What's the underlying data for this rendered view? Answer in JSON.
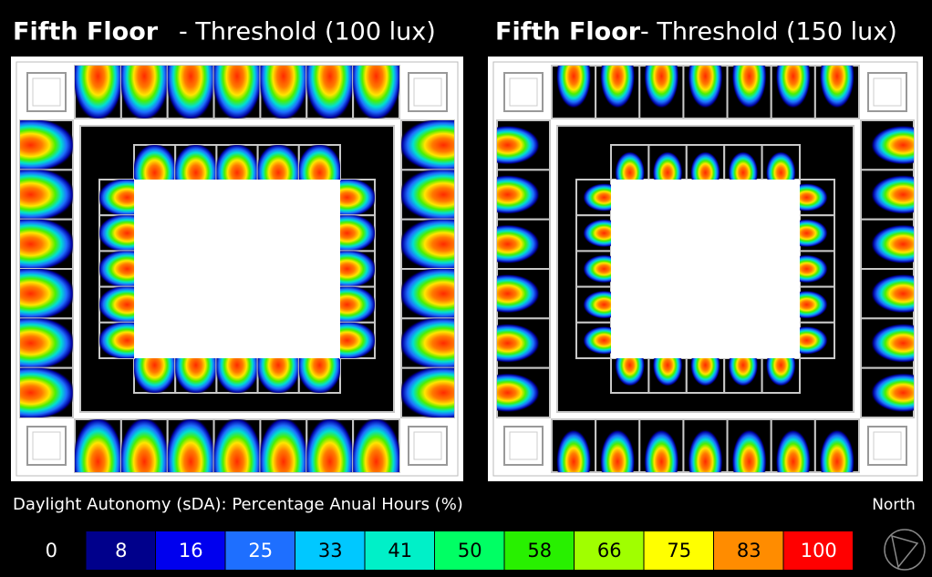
{
  "panels": [
    {
      "title_bold": "Fifth Floor",
      "title_rest": "- Threshold (100 lux)"
    },
    {
      "title_bold": "Fifth Floor",
      "title_rest": "- Threshold (150 lux)"
    }
  ],
  "legend": {
    "title": "Daylight Autonomy (sDA): Percentage Anual Hours (%)",
    "values": [
      0,
      8,
      16,
      25,
      33,
      41,
      50,
      58,
      66,
      75,
      83,
      100
    ],
    "colors": [
      "#000000",
      "#00008b",
      "#0000ee",
      "#1e6fff",
      "#00c8ff",
      "#00f0c8",
      "#00ff64",
      "#28f000",
      "#a0ff00",
      "#ffff00",
      "#ff8c00",
      "#ff0000"
    ],
    "text_colors": [
      "#ffffff",
      "#ffffff",
      "#ffffff",
      "#ffffff",
      "#000000",
      "#000000",
      "#000000",
      "#000000",
      "#000000",
      "#000000",
      "#000000",
      "#ffffff"
    ]
  },
  "north": "North"
}
